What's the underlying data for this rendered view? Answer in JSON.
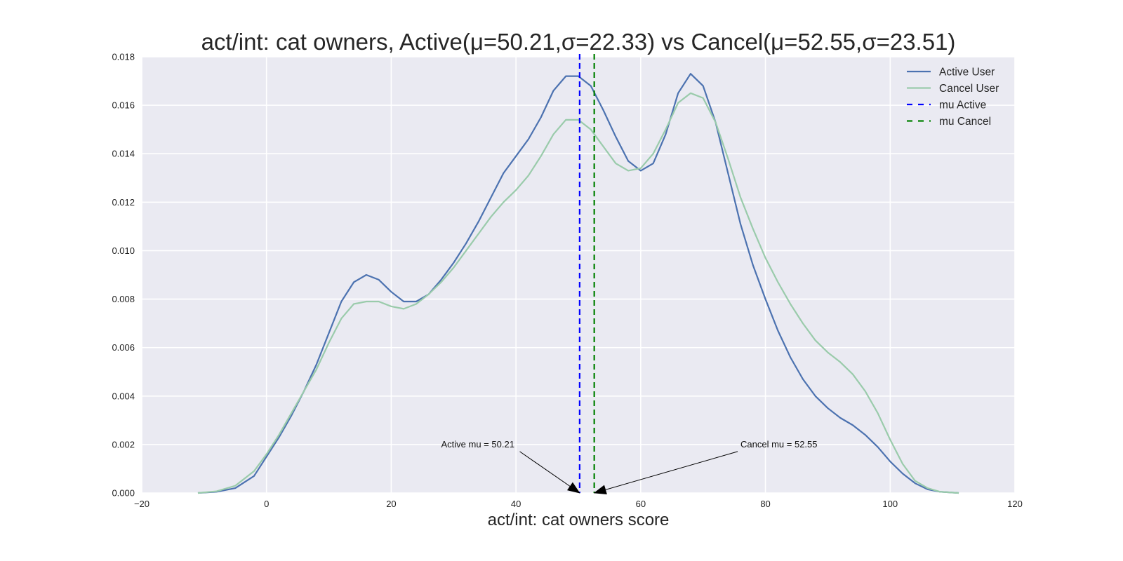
{
  "chart_data": {
    "type": "line",
    "title": "act/int: cat owners, Active(μ=50.21,σ=22.33) vs Cancel(μ=52.55,σ=23.51)",
    "xlabel": "act/int: cat owners score",
    "ylabel": "",
    "xlim": [
      -20,
      120
    ],
    "ylim": [
      0,
      0.018
    ],
    "xticks": [
      -20,
      0,
      20,
      40,
      60,
      80,
      100,
      120
    ],
    "xtick_labels": [
      "−20",
      "0",
      "20",
      "40",
      "60",
      "80",
      "100",
      "120"
    ],
    "yticks": [
      0,
      0.002,
      0.004,
      0.006,
      0.008,
      0.01,
      0.012,
      0.014,
      0.016,
      0.018
    ],
    "ytick_labels": [
      "0.000",
      "0.002",
      "0.004",
      "0.006",
      "0.008",
      "0.010",
      "0.012",
      "0.014",
      "0.016",
      "0.018"
    ],
    "grid": true,
    "legend_position": "top-right",
    "background": "#EAEAF2",
    "series": [
      {
        "name": "Active User",
        "color": "#4C72B0",
        "style": "solid",
        "points": [
          [
            -11,
            0.0
          ],
          [
            -8,
            5e-05
          ],
          [
            -5,
            0.0002
          ],
          [
            -2,
            0.0007
          ],
          [
            0,
            0.0015
          ],
          [
            2,
            0.0023
          ],
          [
            4,
            0.0032
          ],
          [
            6,
            0.0042
          ],
          [
            8,
            0.0053
          ],
          [
            10,
            0.0066
          ],
          [
            12,
            0.0079
          ],
          [
            14,
            0.0087
          ],
          [
            16,
            0.009
          ],
          [
            18,
            0.0088
          ],
          [
            20,
            0.0083
          ],
          [
            22,
            0.0079
          ],
          [
            24,
            0.0079
          ],
          [
            26,
            0.0082
          ],
          [
            28,
            0.0088
          ],
          [
            30,
            0.0095
          ],
          [
            32,
            0.0103
          ],
          [
            34,
            0.0112
          ],
          [
            36,
            0.0122
          ],
          [
            38,
            0.0132
          ],
          [
            40,
            0.0139
          ],
          [
            42,
            0.0146
          ],
          [
            44,
            0.0155
          ],
          [
            46,
            0.0166
          ],
          [
            48,
            0.0172
          ],
          [
            50,
            0.0172
          ],
          [
            52,
            0.0168
          ],
          [
            54,
            0.0158
          ],
          [
            56,
            0.0147
          ],
          [
            58,
            0.0137
          ],
          [
            60,
            0.0133
          ],
          [
            62,
            0.0136
          ],
          [
            64,
            0.0148
          ],
          [
            66,
            0.0165
          ],
          [
            68,
            0.0173
          ],
          [
            70,
            0.0168
          ],
          [
            72,
            0.0153
          ],
          [
            74,
            0.0132
          ],
          [
            76,
            0.0111
          ],
          [
            78,
            0.0094
          ],
          [
            80,
            0.008
          ],
          [
            82,
            0.0067
          ],
          [
            84,
            0.0056
          ],
          [
            86,
            0.0047
          ],
          [
            88,
            0.004
          ],
          [
            90,
            0.0035
          ],
          [
            92,
            0.0031
          ],
          [
            94,
            0.0028
          ],
          [
            96,
            0.0024
          ],
          [
            98,
            0.0019
          ],
          [
            100,
            0.0013
          ],
          [
            102,
            0.0008
          ],
          [
            104,
            0.0004
          ],
          [
            106,
            0.00015
          ],
          [
            108,
            5e-05
          ],
          [
            111,
            0.0
          ]
        ]
      },
      {
        "name": "Cancel User",
        "color": "#9ACBAB",
        "style": "solid",
        "points": [
          [
            -11,
            0.0
          ],
          [
            -8,
            7e-05
          ],
          [
            -5,
            0.0003
          ],
          [
            -2,
            0.0009
          ],
          [
            0,
            0.0016
          ],
          [
            2,
            0.0024
          ],
          [
            4,
            0.0033
          ],
          [
            6,
            0.0042
          ],
          [
            8,
            0.0051
          ],
          [
            10,
            0.0062
          ],
          [
            12,
            0.0072
          ],
          [
            14,
            0.0078
          ],
          [
            16,
            0.0079
          ],
          [
            18,
            0.0079
          ],
          [
            20,
            0.0077
          ],
          [
            22,
            0.0076
          ],
          [
            24,
            0.0078
          ],
          [
            26,
            0.0082
          ],
          [
            28,
            0.0087
          ],
          [
            30,
            0.0093
          ],
          [
            32,
            0.01
          ],
          [
            34,
            0.0107
          ],
          [
            36,
            0.0114
          ],
          [
            38,
            0.012
          ],
          [
            40,
            0.0125
          ],
          [
            42,
            0.0131
          ],
          [
            44,
            0.0139
          ],
          [
            46,
            0.0148
          ],
          [
            48,
            0.0154
          ],
          [
            50,
            0.0154
          ],
          [
            52,
            0.015
          ],
          [
            54,
            0.0143
          ],
          [
            56,
            0.0136
          ],
          [
            58,
            0.0133
          ],
          [
            60,
            0.0134
          ],
          [
            62,
            0.014
          ],
          [
            64,
            0.015
          ],
          [
            66,
            0.0161
          ],
          [
            68,
            0.0165
          ],
          [
            70,
            0.0163
          ],
          [
            72,
            0.0153
          ],
          [
            74,
            0.0138
          ],
          [
            76,
            0.0122
          ],
          [
            78,
            0.0109
          ],
          [
            80,
            0.0097
          ],
          [
            82,
            0.0087
          ],
          [
            84,
            0.0078
          ],
          [
            86,
            0.007
          ],
          [
            88,
            0.0063
          ],
          [
            90,
            0.0058
          ],
          [
            92,
            0.0054
          ],
          [
            94,
            0.0049
          ],
          [
            96,
            0.0042
          ],
          [
            98,
            0.0033
          ],
          [
            100,
            0.0022
          ],
          [
            102,
            0.0012
          ],
          [
            104,
            0.0005
          ],
          [
            106,
            0.0002
          ],
          [
            108,
            5e-05
          ],
          [
            111,
            0.0
          ]
        ]
      },
      {
        "name": "mu Active",
        "color": "#0000FF",
        "style": "dashed",
        "x": 50.21
      },
      {
        "name": "mu Cancel",
        "color": "#008000",
        "style": "dashed",
        "x": 52.55
      }
    ],
    "annotations": [
      {
        "text": "Active mu = 50.21",
        "x": 50.21,
        "y": 0.0,
        "text_x": 28,
        "text_y": 0.002
      },
      {
        "text": "Cancel mu = 52.55",
        "x": 52.55,
        "y": 0.0,
        "text_x": 76,
        "text_y": 0.002
      }
    ]
  }
}
